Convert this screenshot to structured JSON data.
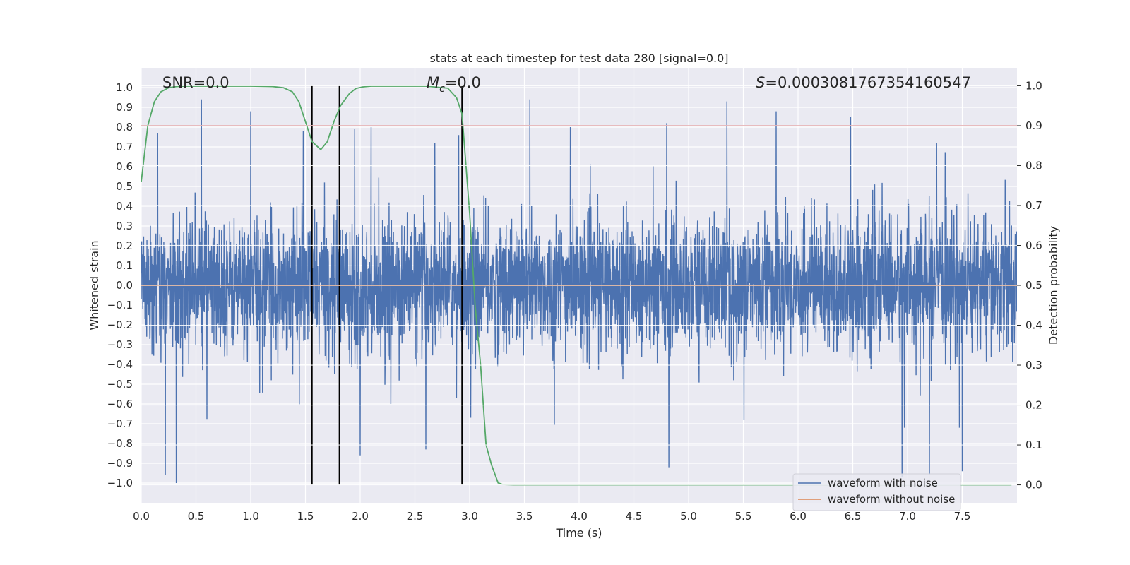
{
  "chart_data": {
    "type": "line",
    "title": "stats at each timestep for test data 280 [signal=0.0]",
    "xlabel": "Time (s)",
    "ylabel": "Whitened strain",
    "y2label": "Detection probability",
    "xlim": [
      0.0,
      8.0
    ],
    "ylim": [
      -1.1,
      1.1
    ],
    "y2lim": [
      -0.045,
      1.045
    ],
    "grid": true,
    "legend_position": "lower-right",
    "x_ticks": [
      "0.0",
      "0.5",
      "1.0",
      "1.5",
      "2.0",
      "2.5",
      "3.0",
      "3.5",
      "4.0",
      "4.5",
      "5.0",
      "5.5",
      "6.0",
      "6.5",
      "7.0",
      "7.5"
    ],
    "y_ticks": [
      "1.0",
      "0.9",
      "0.8",
      "0.7",
      "0.6",
      "0.5",
      "0.4",
      "0.3",
      "0.2",
      "0.1",
      "0.0",
      "−0.1",
      "−0.2",
      "−0.3",
      "−0.4",
      "−0.5",
      "−0.6",
      "−0.7",
      "−0.8",
      "−0.9",
      "−1.0"
    ],
    "y2_ticks": [
      "1.0",
      "0.9",
      "0.8",
      "0.7",
      "0.6",
      "0.5",
      "0.4",
      "0.3",
      "0.2",
      "0.1",
      "0.0"
    ],
    "annotations": {
      "snr": "SNR=0.0",
      "mc_symbol": "M",
      "mc_sub": "c",
      "mc_value": "=0.0",
      "s_symbol": "S",
      "s_value": "=0.0003081767354160547"
    },
    "series": [
      {
        "name": "waveform with noise",
        "color": "#4c72b0",
        "axis": "left",
        "description_note": "dense noise trace, amplitude approx ±0.5 with peaks to ±1.0",
        "peaks": [
          {
            "x": 0.15,
            "y": 0.77
          },
          {
            "x": 0.22,
            "y": -0.96
          },
          {
            "x": 0.32,
            "y": -1.0
          },
          {
            "x": 0.55,
            "y": 0.94
          },
          {
            "x": 1.0,
            "y": 0.88
          },
          {
            "x": 1.48,
            "y": 0.78
          },
          {
            "x": 1.95,
            "y": 0.79
          },
          {
            "x": 2.1,
            "y": 0.8
          },
          {
            "x": 2.0,
            "y": -0.86
          },
          {
            "x": 2.6,
            "y": -0.83
          },
          {
            "x": 2.9,
            "y": 0.76
          },
          {
            "x": 3.55,
            "y": 0.94
          },
          {
            "x": 3.92,
            "y": 0.8
          },
          {
            "x": 4.8,
            "y": 0.82
          },
          {
            "x": 4.82,
            "y": -0.92
          },
          {
            "x": 5.35,
            "y": 0.93
          },
          {
            "x": 5.8,
            "y": 0.88
          },
          {
            "x": 6.48,
            "y": 0.85
          },
          {
            "x": 6.95,
            "y": -0.97
          },
          {
            "x": 7.2,
            "y": -0.96
          },
          {
            "x": 7.5,
            "y": -0.94
          }
        ]
      },
      {
        "name": "waveform without noise",
        "color": "#dd8452",
        "axis": "left",
        "x": [
          0.0,
          8.0
        ],
        "y": [
          0.0,
          0.0
        ]
      },
      {
        "color": "#55a868",
        "axis": "right",
        "x": [
          0.0,
          0.06,
          0.12,
          0.18,
          0.25,
          0.32,
          0.4,
          0.5,
          0.6,
          0.8,
          1.0,
          1.2,
          1.3,
          1.38,
          1.44,
          1.5,
          1.56,
          1.6,
          1.64,
          1.7,
          1.76,
          1.82,
          1.9,
          1.96,
          2.02,
          2.1,
          2.2,
          2.4,
          2.6,
          2.8,
          2.88,
          2.93,
          3.0,
          3.05,
          3.1,
          3.15,
          3.2,
          3.26,
          3.3,
          3.4,
          3.6,
          4.0,
          5.0,
          6.0,
          7.0,
          7.95
        ],
        "y": [
          0.76,
          0.9,
          0.96,
          0.985,
          0.995,
          0.998,
          0.999,
          0.999,
          0.999,
          0.999,
          0.999,
          0.998,
          0.995,
          0.985,
          0.96,
          0.91,
          0.86,
          0.85,
          0.84,
          0.86,
          0.91,
          0.95,
          0.98,
          0.993,
          0.997,
          0.999,
          0.999,
          0.999,
          0.999,
          0.994,
          0.97,
          0.93,
          0.68,
          0.45,
          0.3,
          0.1,
          0.05,
          0.005,
          0.001,
          0.0,
          0.0,
          0.0,
          0.0,
          0.0,
          0.0,
          0.0
        ]
      },
      {
        "color": "#c44e52",
        "axis": "right",
        "x": [
          0.0,
          8.0
        ],
        "y": [
          0.9,
          0.9
        ]
      }
    ],
    "vertical_lines": {
      "color": "#000000",
      "x": [
        1.56,
        1.81,
        2.93
      ],
      "y2_range": [
        0.0,
        1.0
      ]
    }
  }
}
